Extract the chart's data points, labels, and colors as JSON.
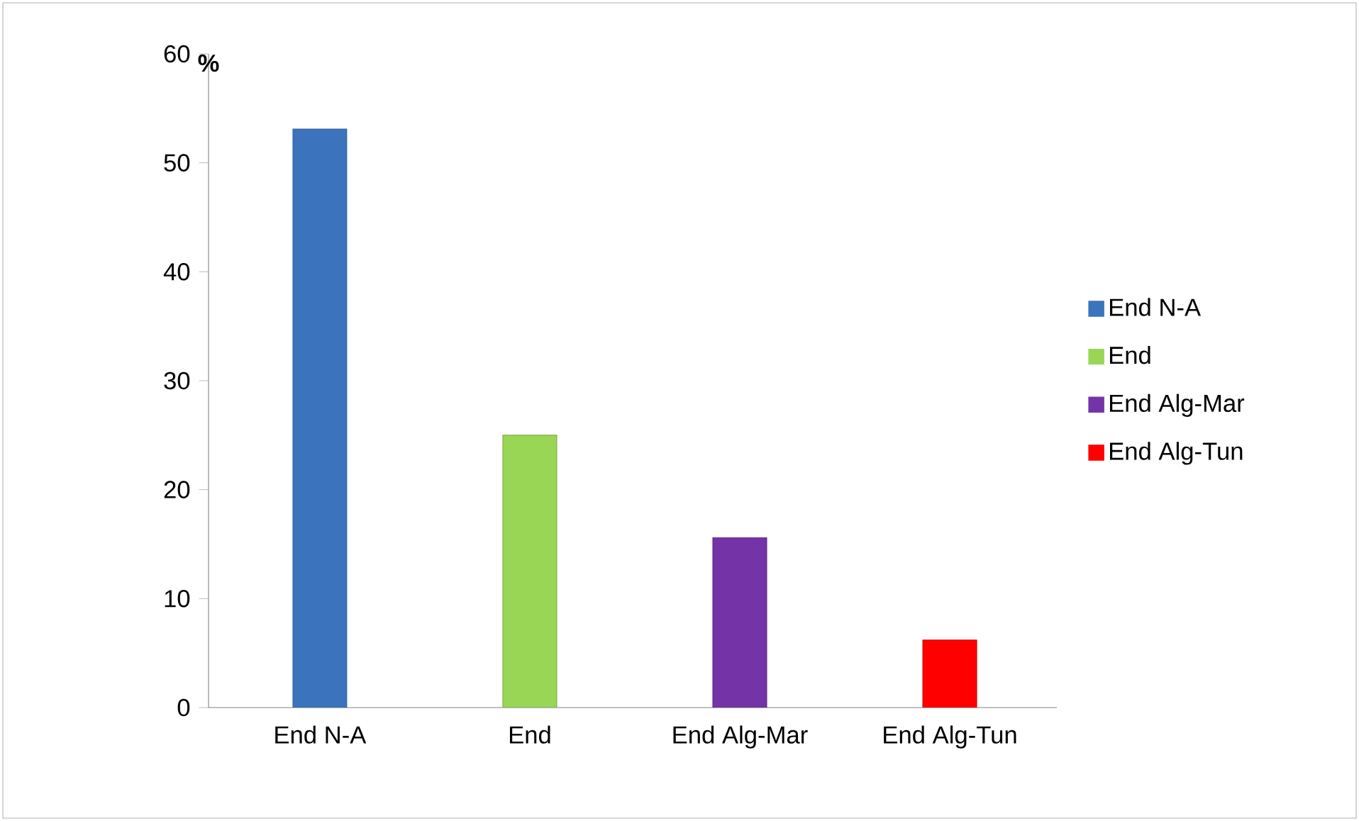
{
  "chart_data": {
    "type": "bar",
    "ylabel": "%",
    "categories": [
      "End N-A",
      "End",
      "End Alg-Mar",
      "End Alg-Tun"
    ],
    "series": [
      {
        "name": "End N-A",
        "color": "#3b74bd",
        "values": [
          53.1,
          null,
          null,
          null
        ]
      },
      {
        "name": "End",
        "color": "#99d656",
        "values": [
          null,
          25,
          null,
          null
        ]
      },
      {
        "name": "End Alg-Mar",
        "color": "#7434a8",
        "values": [
          null,
          null,
          15.6,
          null
        ]
      },
      {
        "name": "End Alg-Tun",
        "color": "#ff0000",
        "values": [
          null,
          null,
          null,
          6.2
        ]
      }
    ],
    "ylim": [
      0,
      60
    ],
    "yticks": [
      0,
      10,
      20,
      30,
      40,
      50,
      60
    ],
    "grid": false,
    "legend": "right"
  }
}
